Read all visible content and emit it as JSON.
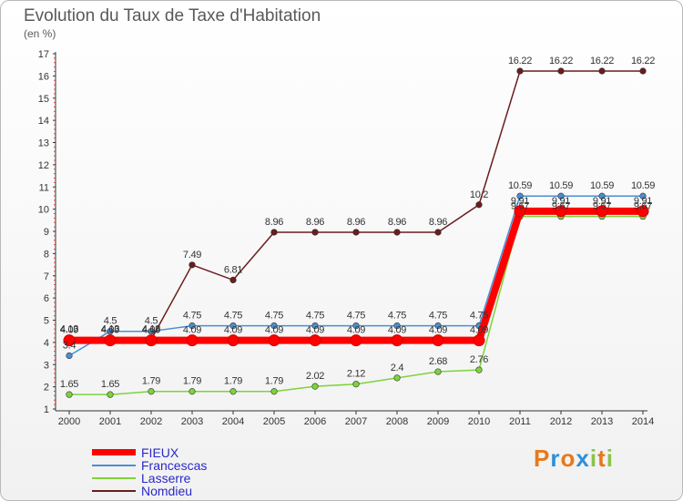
{
  "title": "Evolution du Taux de Taxe d'Habitation",
  "unit": "(en %)",
  "logo": "Proxiti",
  "chart_data": {
    "type": "line",
    "x": [
      "2000",
      "2001",
      "2002",
      "2003",
      "2004",
      "2005",
      "2006",
      "2007",
      "2008",
      "2009",
      "2010",
      "2011",
      "2012",
      "2013",
      "2014"
    ],
    "ylim": [
      1,
      17
    ],
    "yticks": [
      "1",
      "2",
      "3",
      "4",
      "5",
      "6",
      "7",
      "8",
      "9",
      "10",
      "11",
      "12",
      "13",
      "14",
      "15",
      "16",
      "17"
    ],
    "grid": false,
    "legend": "bottom-left",
    "series": [
      {
        "name": "FIEUX",
        "color": "#ff0000",
        "values": [
          4.09,
          4.09,
          4.09,
          4.09,
          4.09,
          4.09,
          4.09,
          4.09,
          4.09,
          4.09,
          4.09,
          9.91,
          9.91,
          9.91,
          9.91
        ],
        "labels": [
          "4.09",
          "4.09",
          "4.09",
          "4.09",
          "4.09",
          "4.09",
          "4.09",
          "4.09",
          "4.09",
          "4.09",
          "4.09",
          "9.91",
          "9.91",
          "9.91",
          "9.91"
        ]
      },
      {
        "name": "Francescas",
        "color": "#4a8fd4",
        "values": [
          3.4,
          4.5,
          4.5,
          4.75,
          4.75,
          4.75,
          4.75,
          4.75,
          4.75,
          4.75,
          4.75,
          10.59,
          10.59,
          10.59,
          10.59
        ],
        "labels": [
          "3.4",
          "4.5",
          "4.5",
          "4.75",
          "4.75",
          "4.75",
          "4.75",
          "4.75",
          "4.75",
          "4.75",
          "4.75",
          "10.59",
          "10.59",
          "10.59",
          "10.59"
        ]
      },
      {
        "name": "Lasserre",
        "color": "#7ed33c",
        "values": [
          1.65,
          1.65,
          1.79,
          1.79,
          1.79,
          1.79,
          2.02,
          2.12,
          2.4,
          2.68,
          2.76,
          9.67,
          9.67,
          9.67,
          9.67
        ],
        "labels": [
          "1.65",
          "1.65",
          "1.79",
          "1.79",
          "1.79",
          "1.79",
          "2.02",
          "2.12",
          "2.4",
          "2.68",
          "2.76",
          "9.67",
          "9.67",
          "9.67",
          "9.67"
        ]
      },
      {
        "name": "Nomdieu",
        "color": "#6b1d1d",
        "values": [
          4.13,
          4.13,
          4.13,
          7.49,
          6.81,
          8.96,
          8.96,
          8.96,
          8.96,
          8.96,
          10.2,
          16.22,
          16.22,
          16.22,
          16.22
        ],
        "labels": [
          "4.13",
          "4.13",
          "4.13",
          "7.49",
          "6.81",
          "8.96",
          "8.96",
          "8.96",
          "8.96",
          "8.96",
          "10.2",
          "16.22",
          "16.22",
          "16.22",
          "16.22"
        ]
      }
    ]
  }
}
